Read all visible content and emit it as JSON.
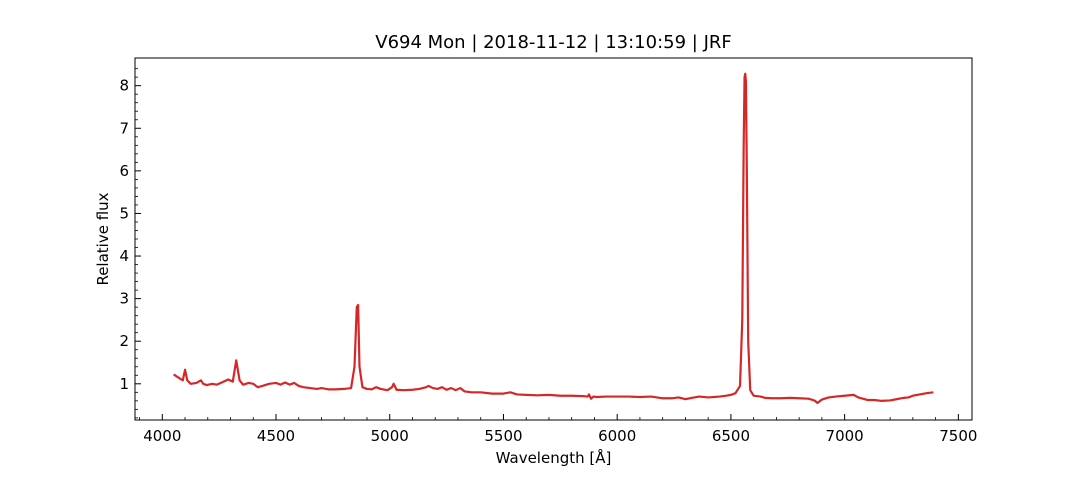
{
  "chart_data": {
    "type": "line",
    "title": "V694 Mon | 2018-11-12 | 13:10:59 | JRF",
    "xlabel": "Wavelength [Å]",
    "ylabel": "Relative flux",
    "xlim": [
      3880,
      7560
    ],
    "ylim": [
      0.15,
      8.65
    ],
    "xticks": [
      4000,
      4500,
      5000,
      5500,
      6000,
      6500,
      7000,
      7500
    ],
    "yticks": [
      1,
      2,
      3,
      4,
      5,
      6,
      7,
      8
    ],
    "grid": false,
    "legend": "none",
    "series": [
      {
        "color": "#d62728",
        "x": [
          4050,
          4070,
          4090,
          4100,
          4110,
          4125,
          4150,
          4170,
          4180,
          4195,
          4220,
          4240,
          4270,
          4290,
          4310,
          4325,
          4340,
          4355,
          4380,
          4400,
          4420,
          4440,
          4470,
          4500,
          4520,
          4540,
          4560,
          4580,
          4600,
          4620,
          4650,
          4680,
          4700,
          4730,
          4760,
          4800,
          4830,
          4845,
          4855,
          4861,
          4867,
          4880,
          4900,
          4920,
          4940,
          4960,
          4990,
          5010,
          5017,
          5030,
          5060,
          5100,
          5130,
          5160,
          5170,
          5190,
          5210,
          5230,
          5250,
          5270,
          5290,
          5310,
          5330,
          5360,
          5400,
          5450,
          5500,
          5530,
          5560,
          5600,
          5650,
          5700,
          5750,
          5800,
          5850,
          5870,
          5876,
          5885,
          5895,
          5910,
          5950,
          6000,
          6050,
          6100,
          6150,
          6200,
          6240,
          6270,
          6300,
          6330,
          6360,
          6400,
          6450,
          6480,
          6500,
          6520,
          6540,
          6550,
          6556,
          6560,
          6563,
          6566,
          6570,
          6576,
          6585,
          6600,
          6630,
          6650,
          6680,
          6720,
          6760,
          6800,
          6840,
          6860,
          6870,
          6880,
          6900,
          6930,
          6960,
          7000,
          7040,
          7060,
          7080,
          7100,
          7130,
          7160,
          7200,
          7230,
          7260,
          7280,
          7300,
          7330,
          7360,
          7390
        ],
        "y": [
          1.22,
          1.15,
          1.08,
          1.33,
          1.08,
          1.0,
          1.02,
          1.08,
          1.0,
          0.97,
          1.0,
          0.98,
          1.05,
          1.1,
          1.05,
          1.55,
          1.08,
          0.98,
          1.02,
          1.0,
          0.92,
          0.95,
          1.0,
          1.02,
          0.98,
          1.03,
          0.98,
          1.02,
          0.95,
          0.92,
          0.9,
          0.88,
          0.9,
          0.87,
          0.87,
          0.88,
          0.9,
          1.4,
          2.8,
          2.85,
          1.4,
          0.92,
          0.88,
          0.87,
          0.92,
          0.88,
          0.85,
          0.92,
          1.0,
          0.86,
          0.85,
          0.86,
          0.88,
          0.92,
          0.95,
          0.9,
          0.88,
          0.92,
          0.86,
          0.9,
          0.85,
          0.9,
          0.82,
          0.8,
          0.8,
          0.77,
          0.77,
          0.8,
          0.75,
          0.74,
          0.73,
          0.74,
          0.72,
          0.72,
          0.71,
          0.7,
          0.75,
          0.65,
          0.7,
          0.69,
          0.7,
          0.7,
          0.7,
          0.69,
          0.7,
          0.66,
          0.66,
          0.68,
          0.64,
          0.67,
          0.7,
          0.68,
          0.7,
          0.72,
          0.74,
          0.78,
          0.95,
          2.5,
          6.5,
          8.2,
          8.28,
          8.1,
          6.0,
          2.0,
          0.85,
          0.72,
          0.7,
          0.67,
          0.66,
          0.66,
          0.67,
          0.66,
          0.65,
          0.62,
          0.6,
          0.55,
          0.63,
          0.68,
          0.7,
          0.72,
          0.74,
          0.68,
          0.65,
          0.62,
          0.62,
          0.6,
          0.61,
          0.64,
          0.67,
          0.68,
          0.72,
          0.75,
          0.78,
          0.8
        ]
      }
    ]
  }
}
